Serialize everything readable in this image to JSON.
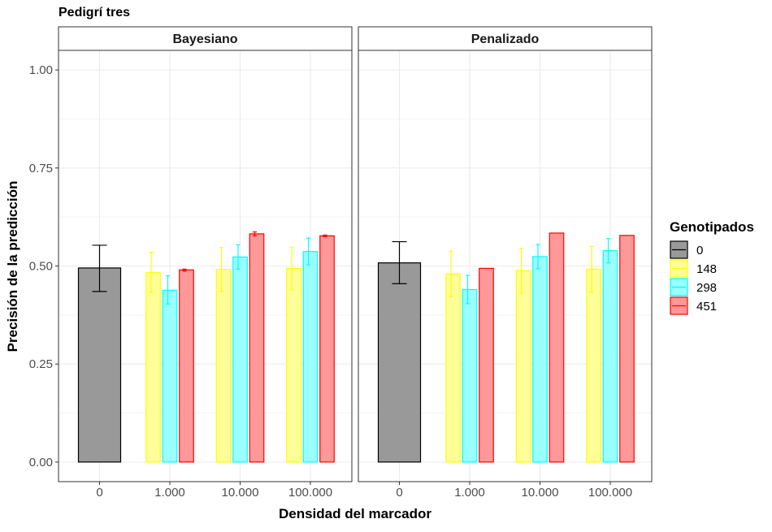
{
  "chart_data": {
    "type": "bar",
    "title": "Pedigrí tres",
    "xlabel": "Densidad del marcador",
    "ylabel": "Precisión de la predicción",
    "ylim": [
      -0.05,
      1.0
    ],
    "yticks": [
      0.0,
      0.25,
      0.5,
      0.75,
      1.0
    ],
    "ytick_labels": [
      "0.00",
      "0.25",
      "0.50",
      "0.75",
      "1.00"
    ],
    "categories": [
      "0",
      "1.000",
      "10.000",
      "100.000"
    ],
    "grid": true,
    "legend": {
      "title": "Genotipados",
      "position": "right",
      "entries": [
        {
          "label": "0",
          "fill": "#999999",
          "stroke": "#000000"
        },
        {
          "label": "148",
          "fill": "#ffff99",
          "stroke": "#ffff00"
        },
        {
          "label": "298",
          "fill": "#99ffff",
          "stroke": "#00ffff"
        },
        {
          "label": "451",
          "fill": "#ff9999",
          "stroke": "#ff0000"
        }
      ]
    },
    "panels": [
      {
        "label": "Bayesiano",
        "groups": [
          {
            "category": "0",
            "bars": [
              {
                "series": "0",
                "value": 0.495,
                "err_low": 0.435,
                "err_high": 0.553
              }
            ]
          },
          {
            "category": "1.000",
            "bars": [
              {
                "series": "148",
                "value": 0.483,
                "err_low": 0.432,
                "err_high": 0.535
              },
              {
                "series": "298",
                "value": 0.438,
                "err_low": 0.403,
                "err_high": 0.475
              },
              {
                "series": "451",
                "value": 0.49,
                "err_low": 0.487,
                "err_high": 0.492
              }
            ]
          },
          {
            "category": "10.000",
            "bars": [
              {
                "series": "148",
                "value": 0.491,
                "err_low": 0.435,
                "err_high": 0.547
              },
              {
                "series": "298",
                "value": 0.523,
                "err_low": 0.492,
                "err_high": 0.554
              },
              {
                "series": "451",
                "value": 0.582,
                "err_low": 0.577,
                "err_high": 0.587
              }
            ]
          },
          {
            "category": "100.000",
            "bars": [
              {
                "series": "148",
                "value": 0.494,
                "err_low": 0.44,
                "err_high": 0.548
              },
              {
                "series": "298",
                "value": 0.537,
                "err_low": 0.503,
                "err_high": 0.571
              },
              {
                "series": "451",
                "value": 0.577,
                "err_low": 0.575,
                "err_high": 0.579
              }
            ]
          }
        ]
      },
      {
        "label": "Penalizado",
        "groups": [
          {
            "category": "0",
            "bars": [
              {
                "series": "0",
                "value": 0.508,
                "err_low": 0.455,
                "err_high": 0.562
              }
            ]
          },
          {
            "category": "1.000",
            "bars": [
              {
                "series": "148",
                "value": 0.48,
                "err_low": 0.422,
                "err_high": 0.538
              },
              {
                "series": "298",
                "value": 0.44,
                "err_low": 0.404,
                "err_high": 0.476
              },
              {
                "series": "451",
                "value": 0.494
              }
            ]
          },
          {
            "category": "10.000",
            "bars": [
              {
                "series": "148",
                "value": 0.488,
                "err_low": 0.431,
                "err_high": 0.545
              },
              {
                "series": "298",
                "value": 0.524,
                "err_low": 0.493,
                "err_high": 0.555
              },
              {
                "series": "451",
                "value": 0.584
              }
            ]
          },
          {
            "category": "100.000",
            "bars": [
              {
                "series": "148",
                "value": 0.492,
                "err_low": 0.434,
                "err_high": 0.55
              },
              {
                "series": "298",
                "value": 0.539,
                "err_low": 0.508,
                "err_high": 0.57
              },
              {
                "series": "451",
                "value": 0.578
              }
            ]
          }
        ]
      }
    ]
  }
}
